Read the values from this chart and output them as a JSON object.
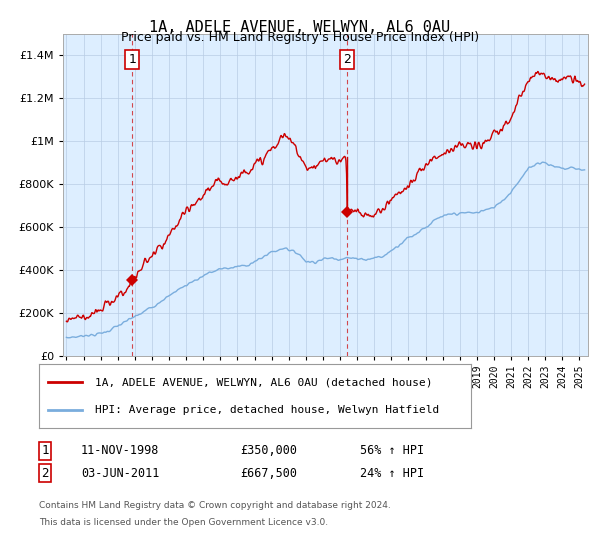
{
  "title": "1A, ADELE AVENUE, WELWYN, AL6 0AU",
  "subtitle": "Price paid vs. HM Land Registry's House Price Index (HPI)",
  "legend_line1": "1A, ADELE AVENUE, WELWYN, AL6 0AU (detached house)",
  "legend_line2": "HPI: Average price, detached house, Welwyn Hatfield",
  "footnote1": "Contains HM Land Registry data © Crown copyright and database right 2024.",
  "footnote2": "This data is licensed under the Open Government Licence v3.0.",
  "red_color": "#cc0000",
  "blue_color": "#7aaddd",
  "background_color": "#ddeeff",
  "ylim": [
    0,
    1500000
  ],
  "xlim_start": 1994.8,
  "xlim_end": 2025.5,
  "sale1_year": 1998.86,
  "sale1_price": 350000,
  "sale2_year": 2011.42,
  "sale2_price": 667500,
  "ann1_date": "11-NOV-1998",
  "ann1_price": "£350,000",
  "ann1_hpi": "56% ↑ HPI",
  "ann2_date": "03-JUN-2011",
  "ann2_price": "£667,500",
  "ann2_hpi": "24% ↑ HPI"
}
